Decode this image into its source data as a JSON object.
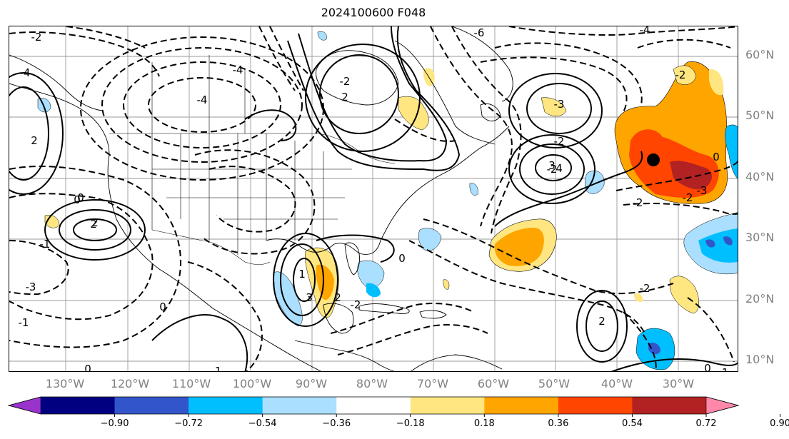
{
  "title": "2024100600 F048",
  "map": {
    "lat_labels": [
      "60°N",
      "50°N",
      "40°N",
      "30°N",
      "20°N",
      "10°N"
    ],
    "lon_labels": [
      "130°W",
      "120°W",
      "110°W",
      "100°W",
      "90°W",
      "80°W",
      "70°W",
      "60°W",
      "50°W",
      "40°W",
      "30°W"
    ],
    "contour_labels": [
      "-4",
      "-6",
      "-4",
      "-4",
      "-3",
      "-2",
      "-2",
      "-2",
      "-2",
      "-1",
      "0",
      "-2",
      "2",
      "0",
      "2",
      "3",
      "4",
      "-3",
      "-2",
      "2",
      "3",
      "2",
      "1",
      "2",
      "0",
      "-1",
      "-3",
      "-2",
      "0",
      "-2",
      "-4",
      "-1",
      "0",
      "0",
      "-2",
      "-1",
      "0",
      "2"
    ],
    "storm_marker": "storm-center",
    "gridlines": true
  },
  "colorbar": {
    "colors": [
      "#9933cc",
      "#000080",
      "#3355cc",
      "#00bfff",
      "#aadfff",
      "#ffffff",
      "#ffe680",
      "#ffa500",
      "#ff4500",
      "#b22222",
      "#ff88aa"
    ],
    "tick_labels": [
      "−0.90",
      "−0.72",
      "−0.54",
      "−0.36",
      "−0.18",
      "0.18",
      "0.36",
      "0.54",
      "0.72",
      "0.90"
    ],
    "extend": "both"
  }
}
